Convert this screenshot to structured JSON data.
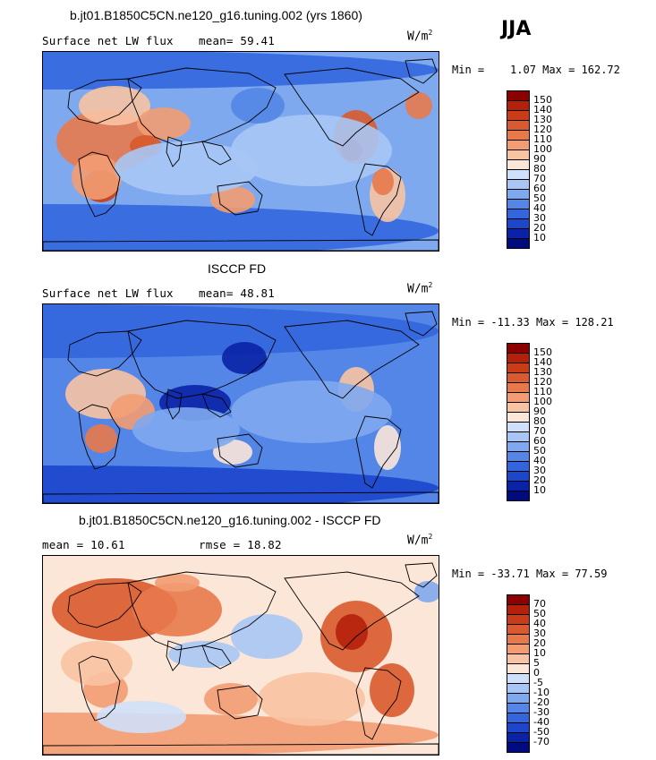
{
  "season": "JJA",
  "chart_data": [
    {
      "type": "heatmap",
      "panel": "model",
      "title": "b.jt01.B1850C5CN.ne120_g16.tuning.002 (yrs 1860)",
      "variable": "Surface net LW flux",
      "stat_label": "mean=",
      "stat_value": "59.41",
      "units_base": "W/m",
      "units_exp": "2",
      "min_label": "Min =",
      "min_value": "1.07",
      "max_label": "Max =",
      "max_value": "162.72",
      "levels": [
        "150",
        "140",
        "130",
        "120",
        "110",
        "100",
        "90",
        "80",
        "70",
        "60",
        "50",
        "40",
        "30",
        "20",
        "10"
      ],
      "colors": [
        "#8b0000",
        "#b5200b",
        "#c93c17",
        "#d95a2e",
        "#e8794b",
        "#f39c72",
        "#f8c3a3",
        "#fbe6d8",
        "#cfe0fa",
        "#a8c6f5",
        "#7fa9ee",
        "#5386e6",
        "#3366dd",
        "#1c46cc",
        "#0a22a6",
        "#020a80"
      ]
    },
    {
      "type": "heatmap",
      "panel": "obs",
      "title": "ISCCP FD",
      "variable": "Surface net LW flux",
      "stat_label": "mean=",
      "stat_value": "48.81",
      "units_base": "W/m",
      "units_exp": "2",
      "min_label": "Min =",
      "min_value": "-11.33",
      "max_label": "Max =",
      "max_value": "128.21",
      "levels": [
        "150",
        "140",
        "130",
        "120",
        "110",
        "100",
        "90",
        "80",
        "70",
        "60",
        "50",
        "40",
        "30",
        "20",
        "10"
      ],
      "colors": [
        "#8b0000",
        "#b5200b",
        "#c93c17",
        "#d95a2e",
        "#e8794b",
        "#f39c72",
        "#f8c3a3",
        "#fbe6d8",
        "#cfe0fa",
        "#a8c6f5",
        "#7fa9ee",
        "#5386e6",
        "#3366dd",
        "#1c46cc",
        "#0a22a6",
        "#020a80"
      ]
    },
    {
      "type": "heatmap",
      "panel": "diff",
      "title": "b.jt01.B1850C5CN.ne120_g16.tuning.002 - ISCCP FD",
      "mean_label": "mean =",
      "mean_value": "10.61",
      "rmse_label": "rmse =",
      "rmse_value": "18.82",
      "units_base": "W/m",
      "units_exp": "2",
      "min_label": "Min =",
      "min_value": "-33.71",
      "max_label": "Max =",
      "max_value": "77.59",
      "levels": [
        "70",
        "50",
        "40",
        "30",
        "20",
        "10",
        "5",
        "0",
        "-5",
        "-10",
        "-20",
        "-30",
        "-40",
        "-50",
        "-70"
      ],
      "colors": [
        "#8b0000",
        "#b5200b",
        "#c93c17",
        "#d95a2e",
        "#e8794b",
        "#f39c72",
        "#f8c3a3",
        "#fbe6d8",
        "#cfe0fa",
        "#a8c6f5",
        "#7fa9ee",
        "#5386e6",
        "#3366dd",
        "#1c46cc",
        "#0a22a6",
        "#020a80"
      ]
    }
  ]
}
